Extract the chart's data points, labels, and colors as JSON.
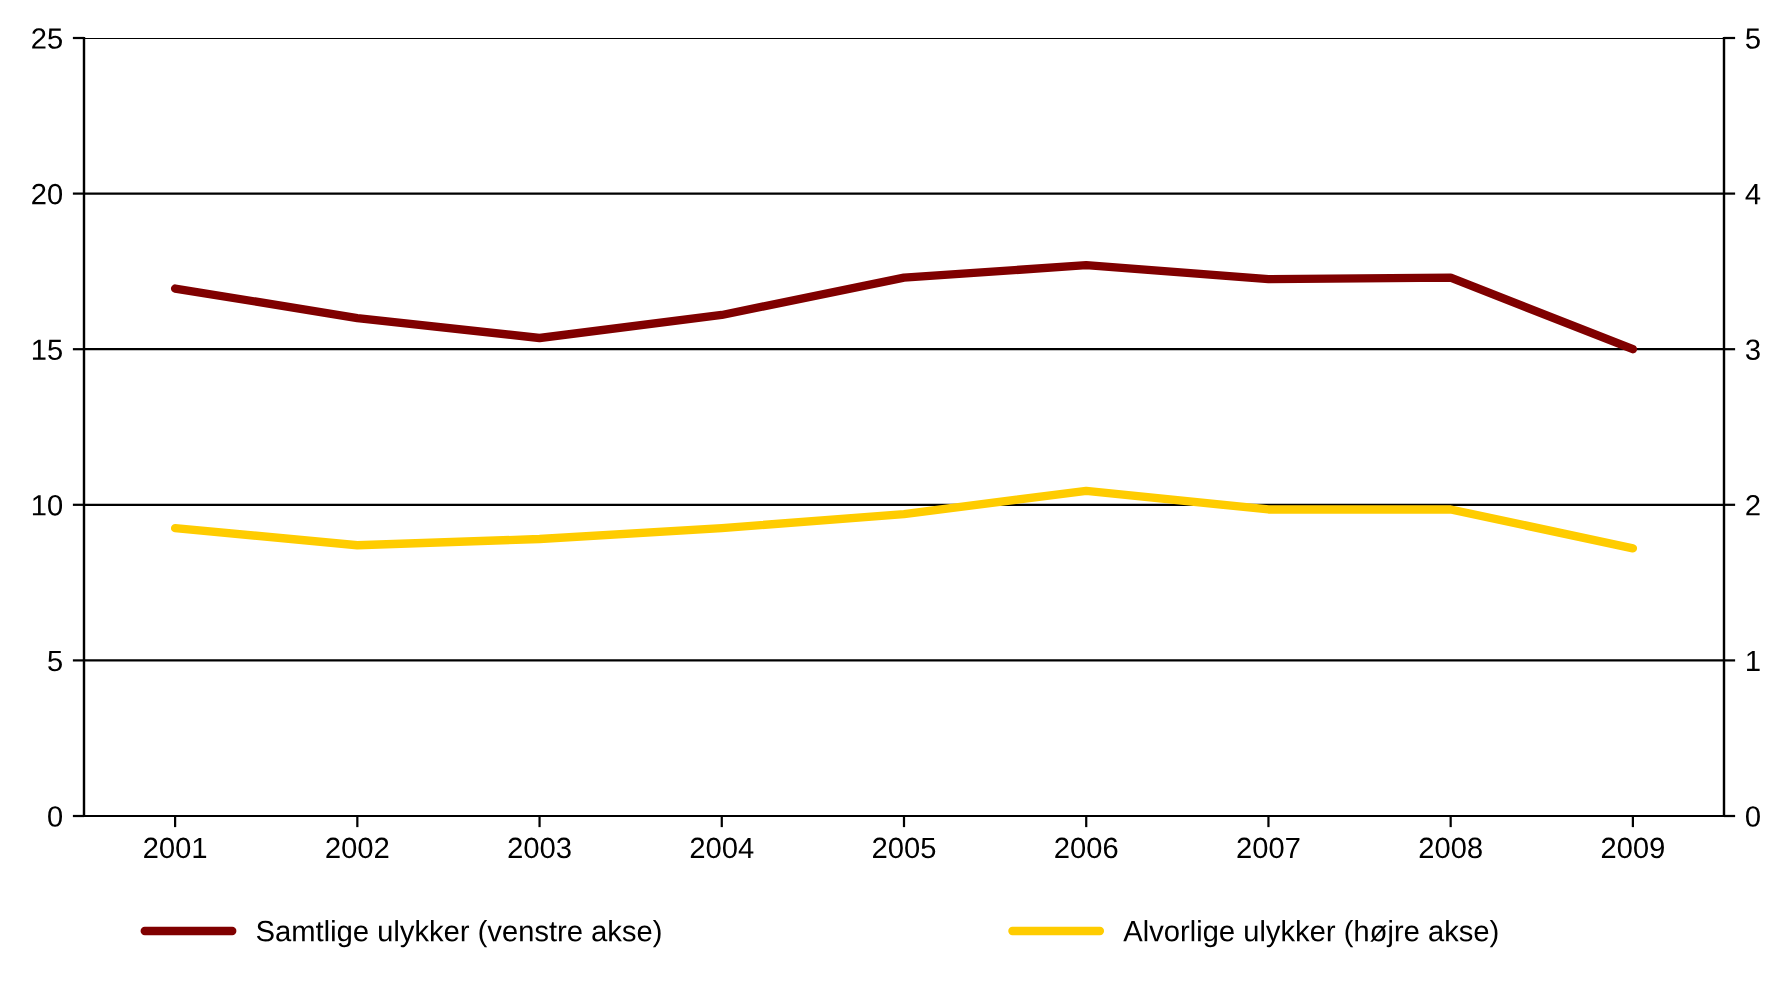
{
  "chart_data": {
    "type": "line",
    "categories": [
      "2001",
      "2002",
      "2003",
      "2004",
      "2005",
      "2006",
      "2007",
      "2008",
      "2009"
    ],
    "series": [
      {
        "name": "Samtlige ulykker (venstre akse)",
        "color": "#800000",
        "values": [
          16.95,
          16.0,
          15.36,
          16.1,
          17.3,
          17.7,
          17.25,
          17.3,
          15.0
        ]
      },
      {
        "name": "Alvorlige ulykker (højre akse)",
        "color": "#ffcc00",
        "axis": "y2",
        "values": [
          1.85,
          1.74,
          1.78,
          1.85,
          1.94,
          2.09,
          1.97,
          1.97,
          1.72
        ]
      }
    ],
    "ylim": [
      0,
      25
    ],
    "yticks": [
      0,
      5,
      10,
      15,
      20,
      25
    ],
    "y2lim": [
      0,
      5
    ],
    "y2ticks": [
      0,
      1,
      2,
      3,
      4,
      5
    ],
    "grid": "y",
    "legend": "bottom",
    "marker": "none",
    "line_style": "solid"
  }
}
